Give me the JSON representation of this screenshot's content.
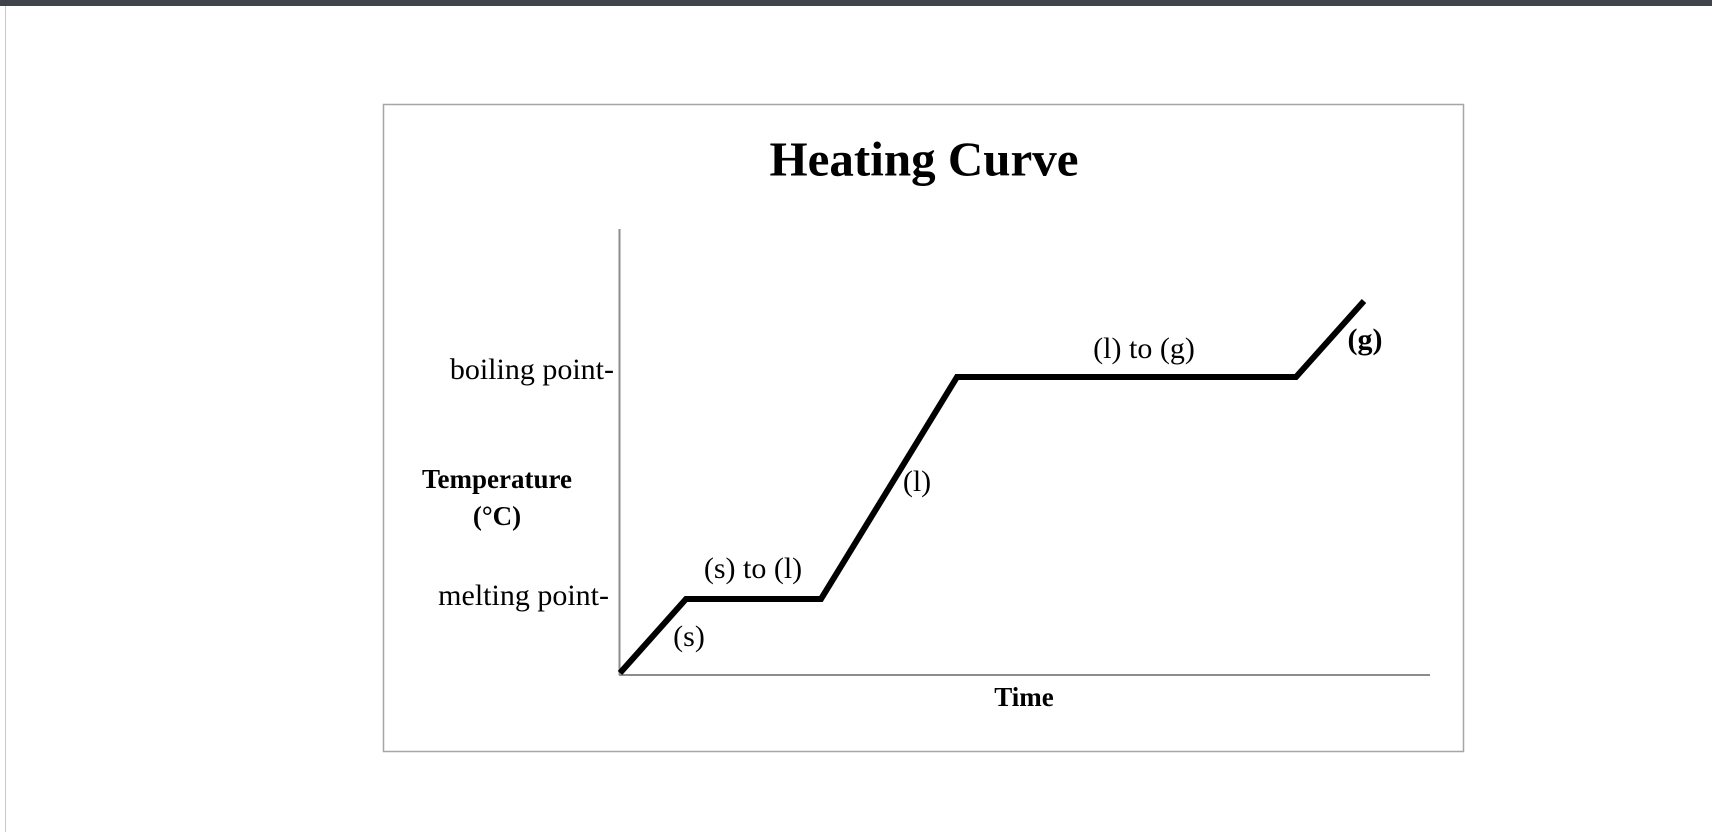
{
  "diagram": {
    "title": "Heating Curve",
    "y_axis_label": [
      "Temperature",
      "(°C)"
    ],
    "x_axis_label": "Time",
    "y_levels": [
      "boiling point-",
      "melting point-"
    ],
    "phase_labels": [
      "(s)",
      "(s) to (l)",
      "(l)",
      "(l) to (g)",
      "(g)"
    ]
  }
}
